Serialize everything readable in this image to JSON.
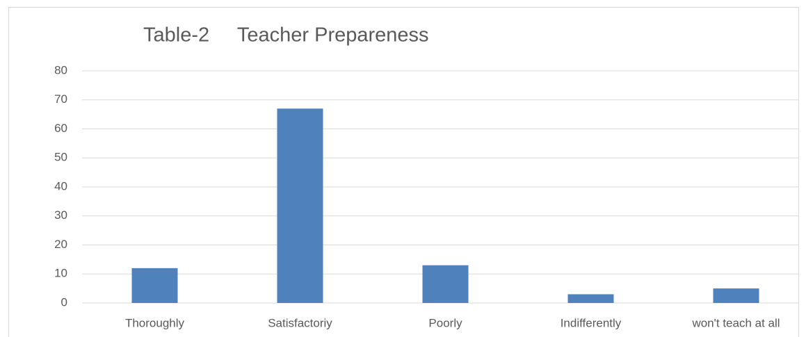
{
  "chart_data": {
    "type": "bar",
    "title": "Table-2     Teacher Prepareness",
    "categories": [
      "Thoroughly",
      "Satisfactoriy",
      "Poorly",
      "Indifferently",
      "won't teach at all"
    ],
    "values": [
      12,
      67,
      13,
      3,
      5
    ],
    "color": "#4f81bd",
    "ylim": [
      0,
      80
    ],
    "yticks": [
      0,
      10,
      20,
      30,
      40,
      50,
      60,
      70,
      80
    ],
    "grid": true
  }
}
